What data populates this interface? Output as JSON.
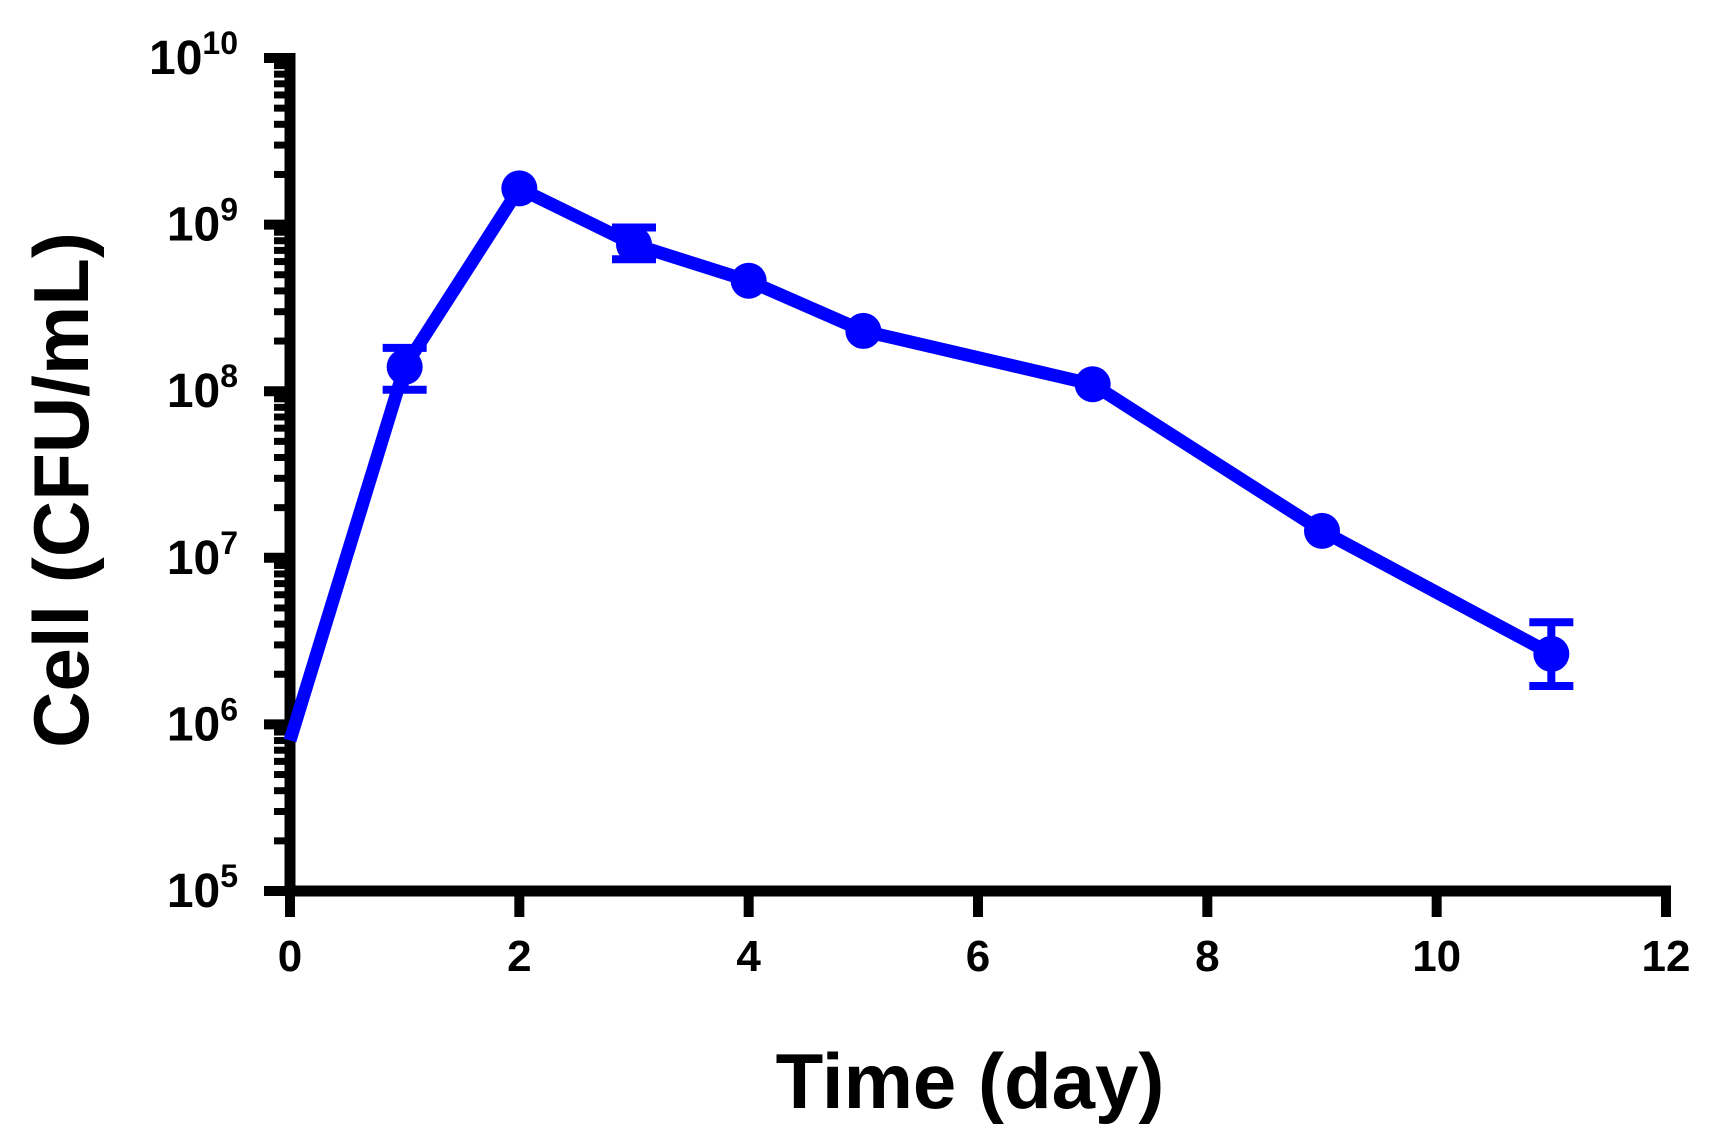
{
  "chart_data": {
    "type": "line",
    "xlabel": "Time (day)",
    "ylabel": "Cell (CFU/mL)",
    "x_scale": "linear",
    "y_scale": "log",
    "xlim": [
      0,
      12
    ],
    "ylim": [
      100000,
      10000000000
    ],
    "x_ticks": [
      0,
      2,
      4,
      6,
      8,
      10,
      12
    ],
    "x_tick_labels": [
      "0",
      "2",
      "4",
      "6",
      "8",
      "10",
      "12"
    ],
    "y_ticks": [
      100000,
      1000000,
      10000000,
      100000000,
      1000000000,
      10000000000
    ],
    "y_tick_labels": [
      {
        "base": "10",
        "exp": "5"
      },
      {
        "base": "10",
        "exp": "6"
      },
      {
        "base": "10",
        "exp": "7"
      },
      {
        "base": "10",
        "exp": "8"
      },
      {
        "base": "10",
        "exp": "9"
      },
      {
        "base": "10",
        "exp": "10"
      }
    ],
    "grid": false,
    "color": "#0000ff",
    "series": [
      {
        "points": [
          {
            "x": 0,
            "y": 800000
          },
          {
            "x": 1,
            "y": 140000000,
            "err_low": 102000000,
            "err_high": 182000000
          },
          {
            "x": 2,
            "y": 1650000000
          },
          {
            "x": 3,
            "y": 760000000,
            "err_low": 620000000,
            "err_high": 960000000
          },
          {
            "x": 4,
            "y": 460000000
          },
          {
            "x": 5,
            "y": 230000000
          },
          {
            "x": 7,
            "y": 110000000
          },
          {
            "x": 9,
            "y": 14500000
          },
          {
            "x": 11,
            "y": 2650000,
            "err_low": 1700000,
            "err_high": 4100000
          }
        ]
      }
    ]
  }
}
